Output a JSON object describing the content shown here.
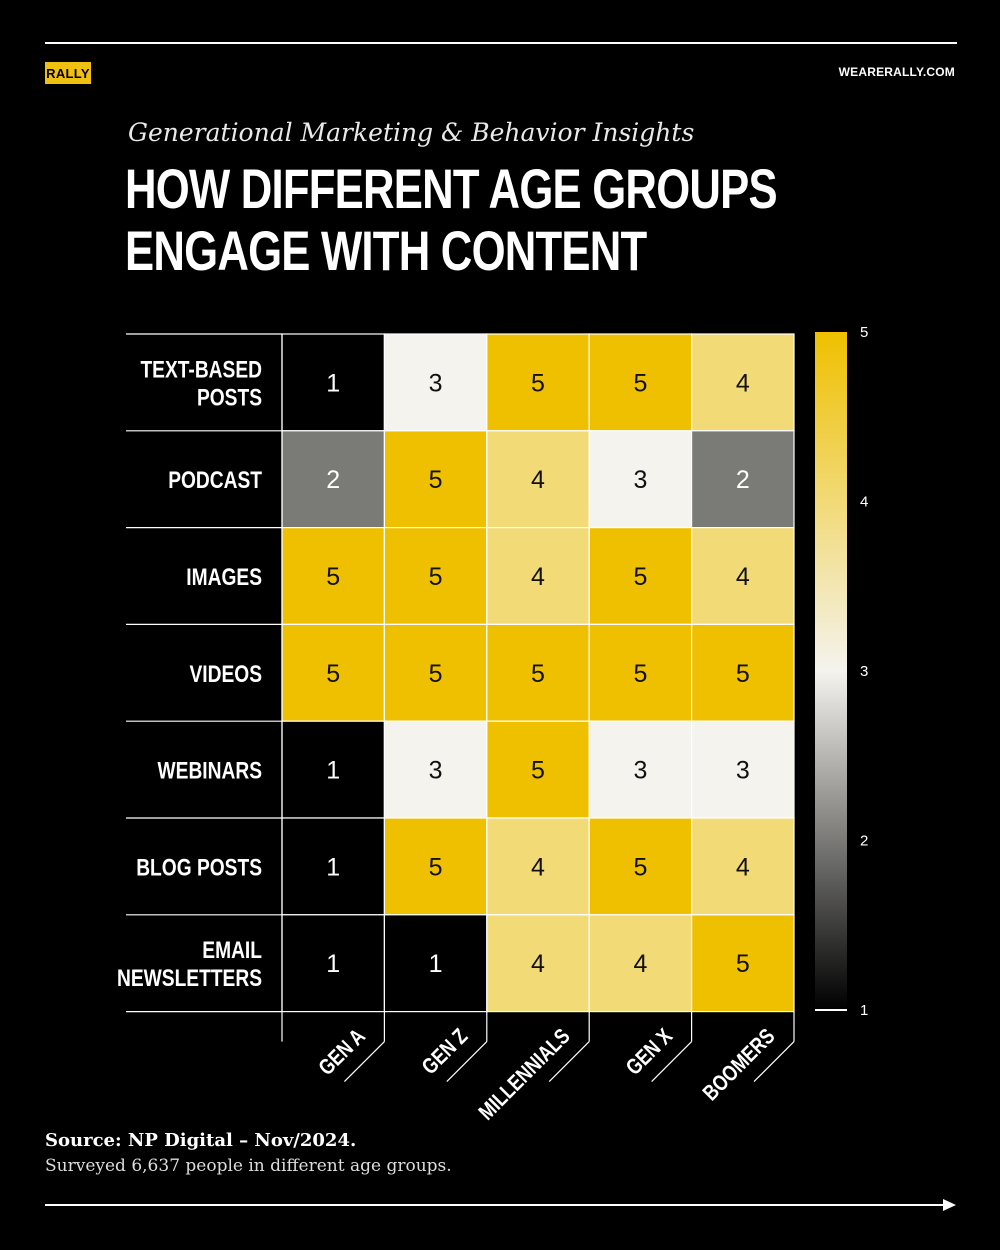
{
  "header": {
    "logo": "RALLY",
    "site": "WEARERALLY.COM"
  },
  "subtitle": "Generational Marketing & Behavior Insights",
  "title_lines": [
    "HOW DIFFERENT AGE GROUPS",
    "ENGAGE WITH CONTENT"
  ],
  "footer": {
    "source": "Source: NP Digital – Nov/2024.",
    "note": "Surveyed 6,637 people in different age groups."
  },
  "colors": {
    "background": "#000000",
    "scale_low": "#000000",
    "scale_mid": "#f4f3ee",
    "scale_high": "#efc000",
    "accent": "#f0c010"
  },
  "chart_data": {
    "type": "heatmap",
    "rows": [
      "TEXT-BASED POSTS",
      "PODCAST",
      "IMAGES",
      "VIDEOS",
      "WEBINARS",
      "BLOG POSTS",
      "EMAIL NEWSLETTERS"
    ],
    "columns": [
      "GEN A",
      "GEN Z",
      "MILLENNIALS",
      "GEN X",
      "BOOMERS"
    ],
    "values": [
      [
        1,
        3,
        5,
        5,
        4
      ],
      [
        2,
        5,
        4,
        3,
        2
      ],
      [
        5,
        5,
        4,
        5,
        4
      ],
      [
        5,
        5,
        5,
        5,
        5
      ],
      [
        1,
        3,
        5,
        3,
        3
      ],
      [
        1,
        5,
        4,
        5,
        4
      ],
      [
        1,
        1,
        4,
        4,
        5
      ]
    ],
    "colorbar": {
      "min": 1,
      "max": 5,
      "ticks": [
        1,
        2,
        3,
        4,
        5
      ]
    }
  }
}
